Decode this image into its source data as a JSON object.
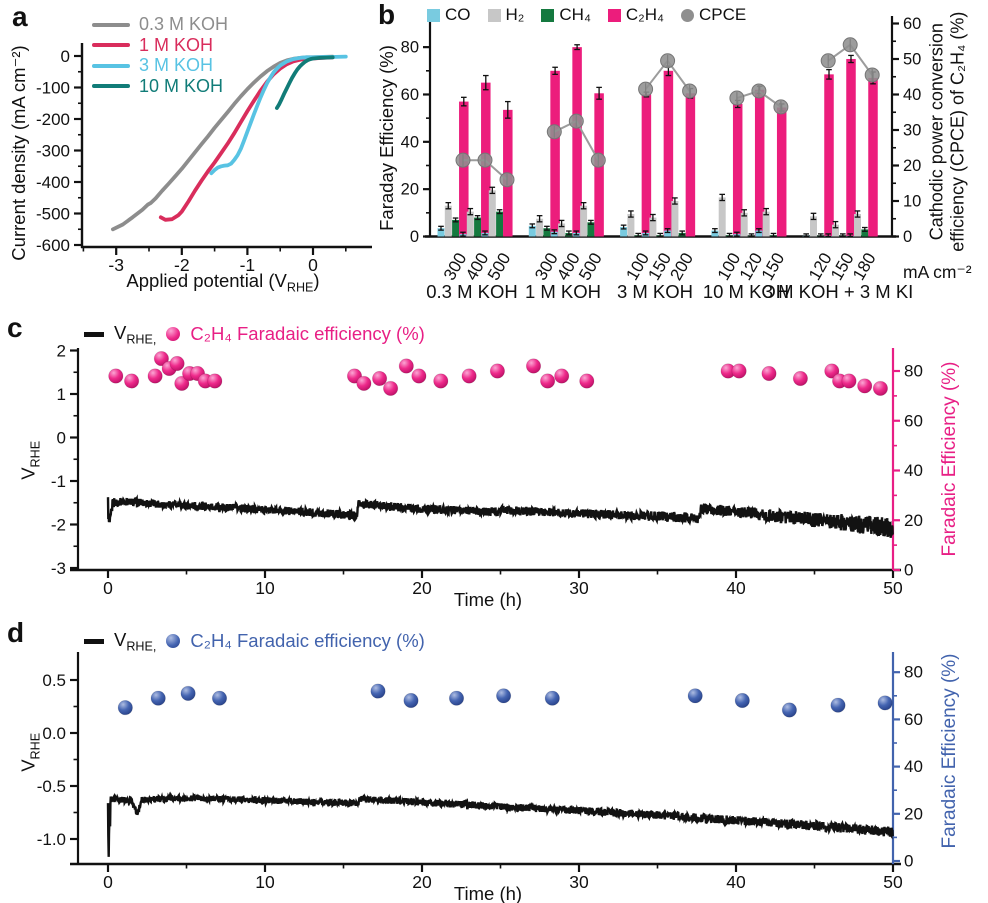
{
  "figure": {
    "letters": {
      "a": "a",
      "b": "b",
      "c": "c",
      "d": "d"
    }
  },
  "chart_data": {
    "a": {
      "type": "line",
      "xlabel_pre": "Applied potential (V",
      "xlabel_sub": "RHE",
      "xlabel_post": ")",
      "ylabel": "Current density (mA cm⁻²)",
      "xticks": [
        -3,
        -2,
        -1,
        0
      ],
      "yticks": [
        0,
        -100,
        -200,
        -300,
        -400,
        -500,
        -600
      ],
      "xlim": [
        -3.55,
        0.9
      ],
      "ylim": [
        -650,
        40
      ],
      "series": [
        {
          "name": "0.3 M KOH",
          "color": "#8d8d8d",
          "points": [
            [
              -3.05,
              -550
            ],
            [
              -2.9,
              -535
            ],
            [
              -2.75,
              -512
            ],
            [
              -2.6,
              -488
            ],
            [
              -2.52,
              -472
            ],
            [
              -2.47,
              -466
            ],
            [
              -2.4,
              -452
            ],
            [
              -2.3,
              -428
            ],
            [
              -2.2,
              -405
            ],
            [
              -2.1,
              -382
            ],
            [
              -2.0,
              -358
            ],
            [
              -1.9,
              -332
            ],
            [
              -1.8,
              -306
            ],
            [
              -1.7,
              -280
            ],
            [
              -1.6,
              -255
            ],
            [
              -1.5,
              -228
            ],
            [
              -1.4,
              -203
            ],
            [
              -1.3,
              -178
            ],
            [
              -1.2,
              -152
            ],
            [
              -1.1,
              -128
            ],
            [
              -1.0,
              -105
            ],
            [
              -0.9,
              -84
            ],
            [
              -0.8,
              -65
            ],
            [
              -0.7,
              -48
            ],
            [
              -0.6,
              -34
            ],
            [
              -0.5,
              -22
            ],
            [
              -0.4,
              -14
            ],
            [
              -0.3,
              -9
            ],
            [
              -0.2,
              -6
            ],
            [
              -0.1,
              -4
            ],
            [
              0,
              -4
            ],
            [
              0.15,
              -3
            ],
            [
              0.3,
              -2
            ]
          ]
        },
        {
          "name": "1 M KOH",
          "color": "#d92d5c",
          "points": [
            [
              -2.32,
              -512
            ],
            [
              -2.25,
              -520
            ],
            [
              -2.15,
              -518
            ],
            [
              -2.05,
              -505
            ],
            [
              -2.0,
              -494
            ],
            [
              -1.9,
              -462
            ],
            [
              -1.8,
              -428
            ],
            [
              -1.7,
              -396
            ],
            [
              -1.6,
              -366
            ],
            [
              -1.5,
              -338
            ],
            [
              -1.4,
              -308
            ],
            [
              -1.3,
              -278
            ],
            [
              -1.2,
              -245
            ],
            [
              -1.1,
              -210
            ],
            [
              -1.0,
              -175
            ],
            [
              -0.9,
              -142
            ],
            [
              -0.8,
              -110
            ],
            [
              -0.7,
              -82
            ],
            [
              -0.6,
              -58
            ],
            [
              -0.5,
              -40
            ],
            [
              -0.4,
              -26
            ],
            [
              -0.3,
              -17
            ],
            [
              -0.2,
              -12
            ],
            [
              -0.1,
              -9
            ],
            [
              0,
              -8
            ],
            [
              0.15,
              -6
            ],
            [
              0.3,
              -4
            ]
          ]
        },
        {
          "name": "3 M KOH",
          "color": "#58c3e3",
          "points": [
            [
              -1.55,
              -372
            ],
            [
              -1.5,
              -362
            ],
            [
              -1.45,
              -354
            ],
            [
              -1.4,
              -350
            ],
            [
              -1.35,
              -348
            ],
            [
              -1.3,
              -347
            ],
            [
              -1.25,
              -342
            ],
            [
              -1.2,
              -330
            ],
            [
              -1.15,
              -315
            ],
            [
              -1.1,
              -295
            ],
            [
              -1.05,
              -268
            ],
            [
              -1.0,
              -240
            ],
            [
              -0.95,
              -212
            ],
            [
              -0.9,
              -184
            ],
            [
              -0.85,
              -158
            ],
            [
              -0.8,
              -132
            ],
            [
              -0.75,
              -108
            ],
            [
              -0.7,
              -86
            ],
            [
              -0.65,
              -68
            ],
            [
              -0.6,
              -52
            ],
            [
              -0.55,
              -40
            ],
            [
              -0.5,
              -30
            ],
            [
              -0.4,
              -17
            ],
            [
              -0.3,
              -10
            ],
            [
              -0.2,
              -6
            ],
            [
              -0.1,
              -4
            ],
            [
              0,
              -4
            ],
            [
              0.2,
              -3
            ],
            [
              0.35,
              -3
            ],
            [
              0.5,
              -2
            ]
          ]
        },
        {
          "name": "10 M KOH",
          "color": "#117c78",
          "points": [
            [
              -0.55,
              -165
            ],
            [
              -0.52,
              -155
            ],
            [
              -0.48,
              -138
            ],
            [
              -0.44,
              -120
            ],
            [
              -0.4,
              -103
            ],
            [
              -0.36,
              -86
            ],
            [
              -0.32,
              -70
            ],
            [
              -0.28,
              -56
            ],
            [
              -0.24,
              -43
            ],
            [
              -0.2,
              -33
            ],
            [
              -0.16,
              -25
            ],
            [
              -0.12,
              -18
            ],
            [
              -0.08,
              -13
            ],
            [
              -0.04,
              -10
            ],
            [
              0,
              -8
            ],
            [
              0.1,
              -6
            ],
            [
              0.2,
              -5
            ],
            [
              0.3,
              -4
            ]
          ]
        }
      ]
    },
    "b": {
      "type": "bar+scatter",
      "ylabel_left": "Faraday Efficiency (%)",
      "right_ylabel_line1": "Cathodic power conversion",
      "right_ylabel_line2": "efficiency (CPCE) of C₂H₄ (%)",
      "unit_label": "mA cm⁻²",
      "left_ticks": [
        0,
        20,
        40,
        60,
        80
      ],
      "right_ticks": [
        0,
        10,
        20,
        30,
        40,
        50,
        60
      ],
      "legend": [
        {
          "label": "CO",
          "color": "#79cbe0",
          "marker": "square"
        },
        {
          "label": "H₂",
          "color": "#c7c7c7",
          "marker": "square"
        },
        {
          "label": "CH₄",
          "color": "#15793f",
          "marker": "square"
        },
        {
          "label": "C₂H₄",
          "color": "#ec1d7c",
          "marker": "square"
        },
        {
          "label": "CPCE",
          "color": "#8f8f8f",
          "marker": "circle"
        }
      ],
      "groups": [
        {
          "label": "0.3 M KOH",
          "currents": [
            "300",
            "400",
            "500"
          ],
          "CO": [
            3.5,
            1,
            1.5
          ],
          "H2": [
            13,
            10.5,
            19.5
          ],
          "CH4": [
            7,
            8,
            10.5
          ],
          "C2H4": [
            57,
            65,
            53.5
          ],
          "C2H4_err": [
            1.8,
            3,
            3.5
          ],
          "CPCE": [
            21.5,
            21.5,
            16
          ]
        },
        {
          "label": "1 M KOH",
          "currents": [
            "300",
            "400",
            "500"
          ],
          "CO": [
            4.5,
            2,
            1.5
          ],
          "H2": [
            7.5,
            5.5,
            13
          ],
          "CH4": [
            3.5,
            1.5,
            6
          ],
          "C2H4": [
            70,
            80,
            60.5
          ],
          "C2H4_err": [
            1.5,
            1,
            2.5
          ],
          "CPCE": [
            29.5,
            32.5,
            21.5
          ]
        },
        {
          "label": "3 M KOH",
          "currents": [
            "100",
            "150",
            "200"
          ],
          "CO": [
            4,
            1.5,
            2.5
          ],
          "H2": [
            9.5,
            8,
            15
          ],
          "CH4": [
            0.5,
            0.5,
            1.5
          ],
          "C2H4": [
            60,
            70,
            60.5
          ],
          "C2H4_err": [
            1,
            2,
            2
          ],
          "CPCE": [
            41.5,
            49.5,
            41
          ]
        },
        {
          "label": "10 M KOH",
          "currents": [
            "100",
            "120",
            "150"
          ],
          "CO": [
            2.5,
            1,
            2.5
          ],
          "H2": [
            16.5,
            10,
            10.5
          ],
          "CH4": [
            0.5,
            0.3,
            0.5
          ],
          "C2H4": [
            56,
            62,
            54.5
          ],
          "C2H4_err": [
            1.5,
            1.5,
            1.5
          ],
          "CPCE": [
            39,
            41,
            36.5
          ]
        },
        {
          "label": "3 M KOH + 3 M KI",
          "currents": [
            "120",
            "150",
            "180"
          ],
          "CO": [
            0.3,
            0.3,
            0.3
          ],
          "H2": [
            8.5,
            5,
            9.5
          ],
          "CH4": [
            0.3,
            0.3,
            3
          ],
          "C2H4": [
            68.5,
            75,
            67
          ],
          "C2H4_err": [
            2,
            1.5,
            2.5
          ],
          "CPCE": [
            49.5,
            54,
            45.5
          ]
        }
      ]
    },
    "c": {
      "type": "line+scatter",
      "xlabel": "Time (h)",
      "ylabel_main": "V",
      "ylabel_sub": "RHE",
      "right_ylabel": "Faradaic Efficiency (%)",
      "legend_v": "V",
      "legend_v_sub": "RHE,",
      "legend_scatter": "C₂H₄ Faradaic efficiency (%)",
      "accent": "#e81f85",
      "sphere_colors": [
        "#fba7d4",
        "#ee2a8b",
        "#b80d63"
      ],
      "left_ticks": [
        "2",
        "1",
        "0",
        "-1",
        "-2",
        "-3"
      ],
      "right_ticks": [
        0,
        20,
        40,
        60,
        80
      ],
      "xticks": [
        0,
        10,
        20,
        30,
        40,
        50
      ],
      "xlim": [
        0,
        50
      ],
      "left_lim": [
        -3,
        2
      ],
      "right_lim": [
        0,
        90
      ],
      "line_anchors": [
        [
          0,
          -1.5
        ],
        [
          0.05,
          -2.0
        ],
        [
          0.15,
          -1.95
        ],
        [
          0.3,
          -1.5
        ],
        [
          1,
          -1.47
        ],
        [
          3,
          -1.52
        ],
        [
          5,
          -1.56
        ],
        [
          8,
          -1.62
        ],
        [
          10,
          -1.66
        ],
        [
          13,
          -1.72
        ],
        [
          15.85,
          -1.79
        ],
        [
          15.95,
          -1.53
        ],
        [
          20,
          -1.64
        ],
        [
          24.9,
          -1.71
        ],
        [
          25.05,
          -1.67
        ],
        [
          30,
          -1.75
        ],
        [
          35,
          -1.81
        ],
        [
          37.6,
          -1.85
        ],
        [
          37.75,
          -1.63
        ],
        [
          40,
          -1.7
        ],
        [
          42,
          -1.78
        ],
        [
          44,
          -1.85
        ],
        [
          46,
          -1.93
        ],
        [
          48,
          -2.0
        ],
        [
          50,
          -2.08
        ]
      ],
      "noise_halfwidth": [
        [
          0,
          0.2
        ],
        [
          0.5,
          0.09
        ],
        [
          10,
          0.09
        ],
        [
          20,
          0.1
        ],
        [
          30,
          0.1
        ],
        [
          38,
          0.12
        ],
        [
          44,
          0.16
        ],
        [
          50,
          0.24
        ]
      ],
      "scatter": [
        [
          0.5,
          78
        ],
        [
          1.5,
          76
        ],
        [
          3.0,
          78
        ],
        [
          3.4,
          85
        ],
        [
          3.9,
          81
        ],
        [
          4.4,
          83
        ],
        [
          4.7,
          75
        ],
        [
          5.2,
          79
        ],
        [
          5.7,
          79
        ],
        [
          6.2,
          76
        ],
        [
          6.8,
          76
        ],
        [
          15.7,
          78
        ],
        [
          16.3,
          75
        ],
        [
          17.3,
          77
        ],
        [
          18.0,
          73
        ],
        [
          19.0,
          82
        ],
        [
          19.8,
          78
        ],
        [
          21.2,
          76
        ],
        [
          23.0,
          78
        ],
        [
          24.8,
          80
        ],
        [
          27.1,
          82
        ],
        [
          28.0,
          76
        ],
        [
          28.9,
          78
        ],
        [
          30.5,
          76
        ],
        [
          39.5,
          80
        ],
        [
          40.2,
          80
        ],
        [
          42.1,
          79
        ],
        [
          44.1,
          77
        ],
        [
          46.1,
          80
        ],
        [
          46.6,
          76
        ],
        [
          47.2,
          76
        ],
        [
          48.2,
          74
        ],
        [
          49.2,
          73
        ]
      ]
    },
    "d": {
      "type": "line+scatter",
      "xlabel": "Time (h)",
      "ylabel_main": "V",
      "ylabel_sub": "RHE",
      "right_ylabel": "Faradaic Efficiency (%)",
      "legend_v": "V",
      "legend_v_sub": "RHE,",
      "legend_scatter": "C₂H₄ Faradaic efficiency (%)",
      "accent": "#4263ad",
      "sphere_colors": [
        "#aebde2",
        "#4565b2",
        "#253e85"
      ],
      "left_ticks": [
        "0.5",
        "0.0",
        "-0.5",
        "-1.0"
      ],
      "right_ticks": [
        0,
        20,
        40,
        60,
        80
      ],
      "xticks": [
        0,
        10,
        20,
        30,
        40,
        50
      ],
      "xlim": [
        0,
        50
      ],
      "left_lim": [
        -1.25,
        0.75
      ],
      "right_lim": [
        0,
        90
      ],
      "line_anchors": [
        [
          0,
          -0.75
        ],
        [
          0.05,
          -1.05
        ],
        [
          0.2,
          -0.63
        ],
        [
          1.5,
          -0.63
        ],
        [
          1.7,
          -0.72
        ],
        [
          1.9,
          -0.78
        ],
        [
          2.1,
          -0.63
        ],
        [
          5,
          -0.615
        ],
        [
          10,
          -0.635
        ],
        [
          15.9,
          -0.665
        ],
        [
          16.05,
          -0.62
        ],
        [
          20,
          -0.655
        ],
        [
          25,
          -0.695
        ],
        [
          30,
          -0.73
        ],
        [
          35,
          -0.775
        ],
        [
          40,
          -0.825
        ],
        [
          45,
          -0.875
        ],
        [
          50,
          -0.935
        ]
      ],
      "noise_halfwidth": [
        [
          0,
          0.22
        ],
        [
          0.3,
          0.03
        ],
        [
          10,
          0.03
        ],
        [
          30,
          0.035
        ],
        [
          50,
          0.047
        ]
      ],
      "scatter": [
        [
          1.1,
          65
        ],
        [
          3.2,
          69
        ],
        [
          5.1,
          71
        ],
        [
          7.1,
          69
        ],
        [
          17.2,
          72
        ],
        [
          19.3,
          68
        ],
        [
          22.2,
          69
        ],
        [
          25.2,
          70
        ],
        [
          28.3,
          69
        ],
        [
          37.4,
          70
        ],
        [
          40.4,
          68
        ],
        [
          43.4,
          64
        ],
        [
          46.5,
          66
        ],
        [
          49.5,
          67
        ]
      ]
    }
  }
}
